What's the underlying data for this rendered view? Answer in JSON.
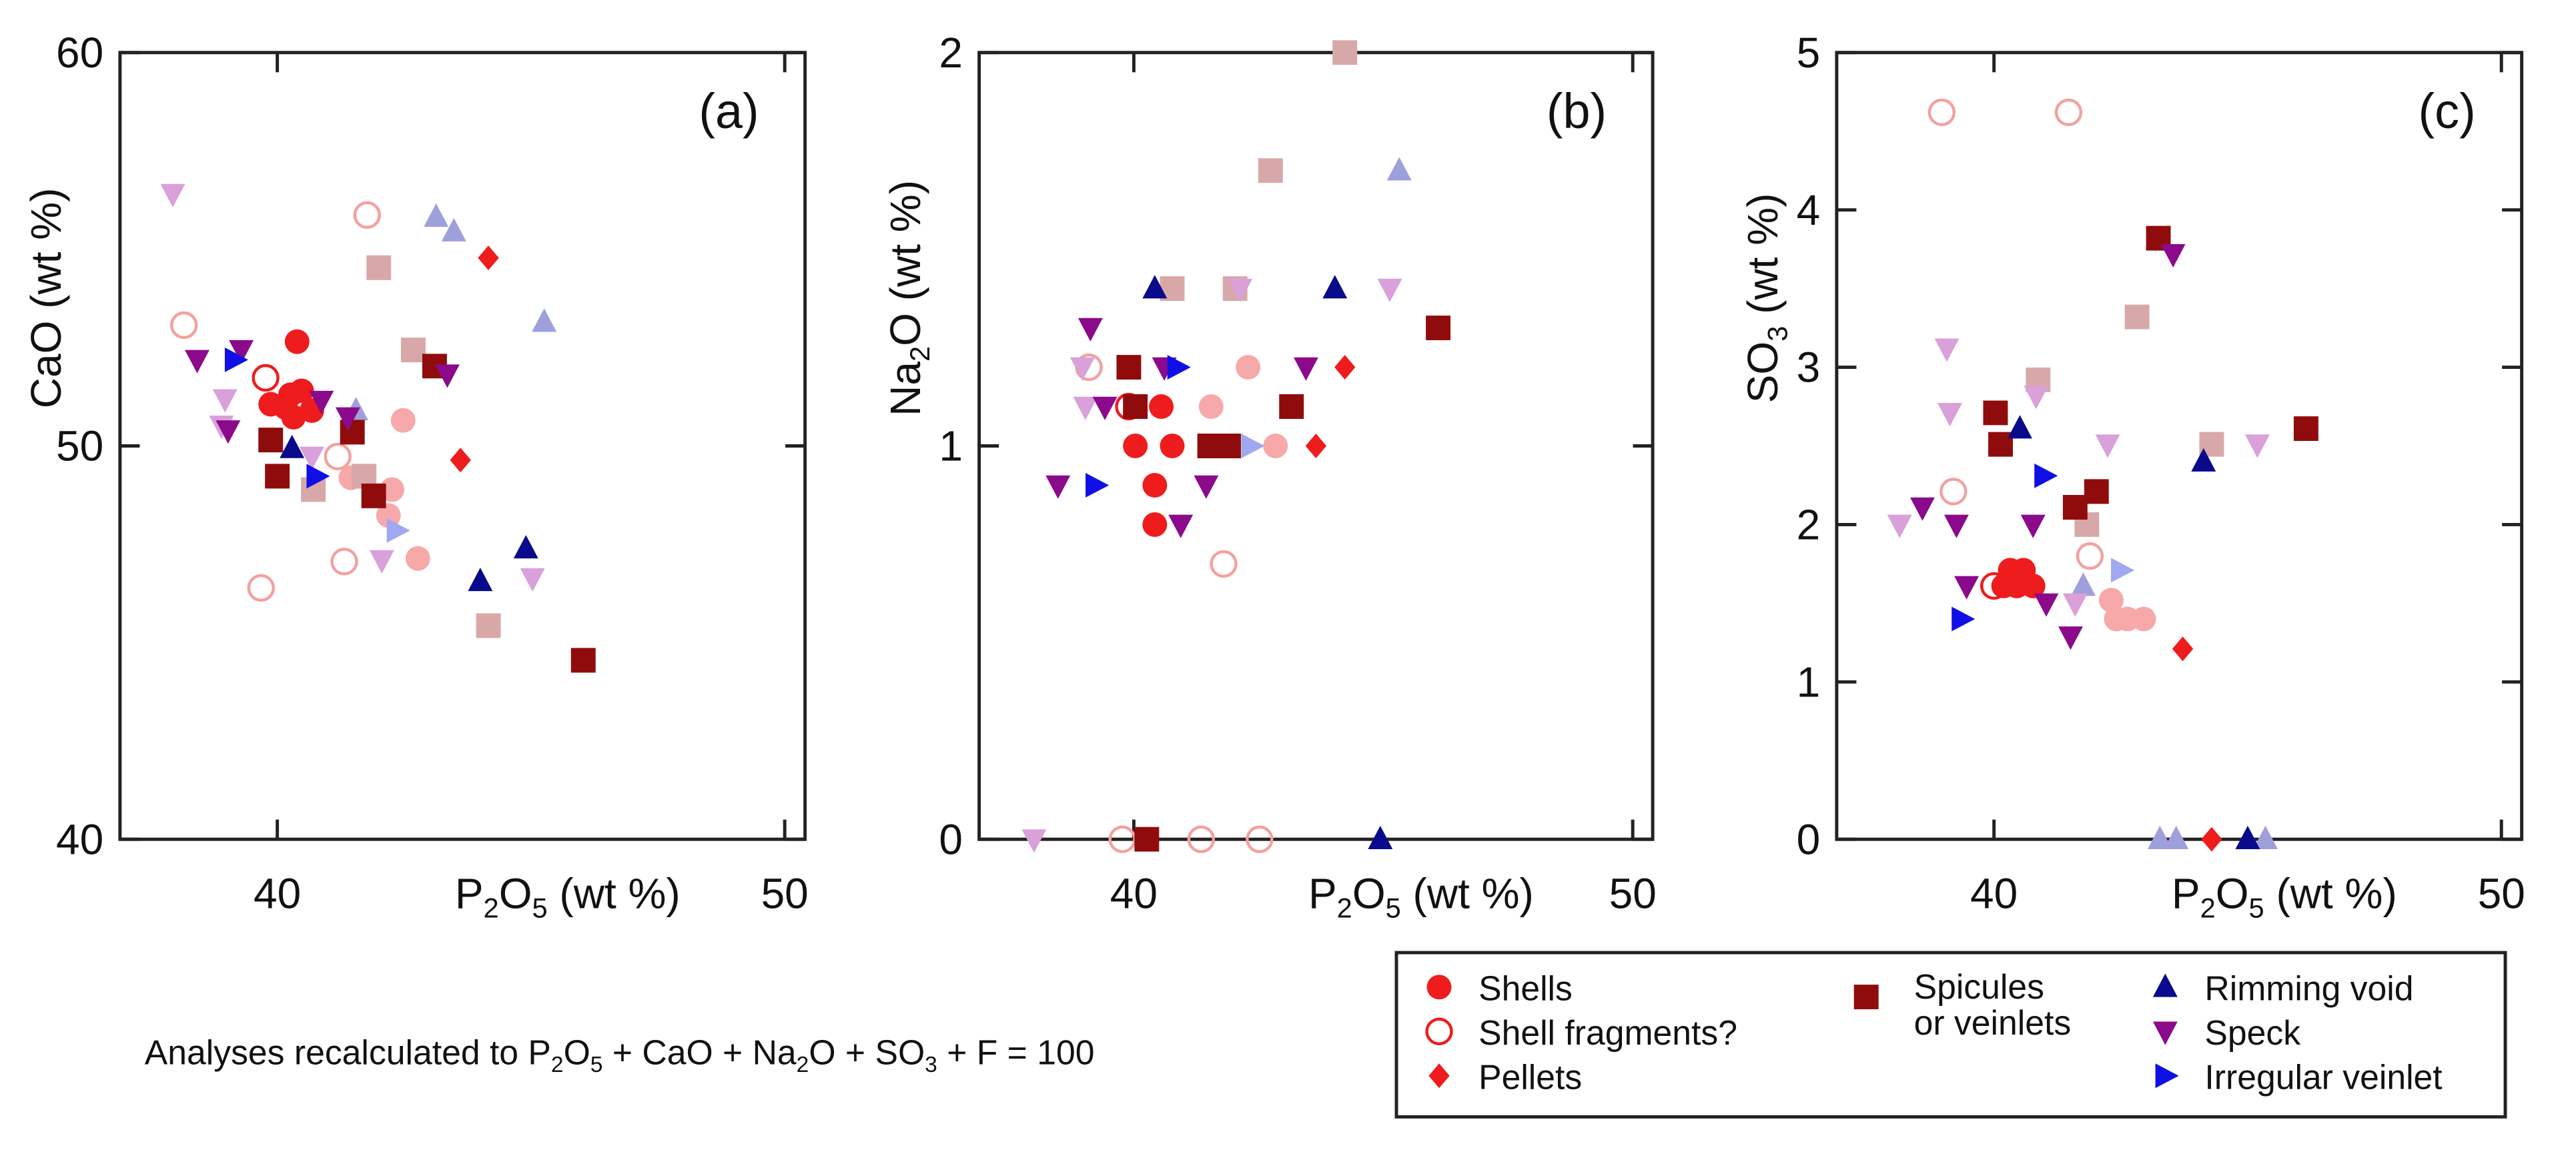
{
  "legend": [
    {
      "name": "Shells",
      "color": "#ee1c1c",
      "marker": "circle",
      "filled": true
    },
    {
      "name": "Shell fragments?",
      "color": "#ee1c1c",
      "marker": "circle",
      "filled": false
    },
    {
      "name": "Pellets",
      "color": "#ee1c1c",
      "marker": "diamond",
      "filled": true
    },
    {
      "name": [
        "Spicules",
        "or veinlets"
      ],
      "color": "#900c0c",
      "marker": "square",
      "filled": true
    },
    {
      "name": "Rimming void",
      "color": "#0a0a8c",
      "marker": "up",
      "filled": true
    },
    {
      "name": "Speck",
      "color": "#8b0a8b",
      "marker": "down",
      "filled": true
    },
    {
      "name": "Irregular veinlet",
      "color": "#1010e6",
      "marker": "right",
      "filled": true
    }
  ],
  "note": "Analyses recalculated to P2O5 + CaO + Na2O + SO3 + F = 100",
  "chart_data": [
    {
      "type": "scatter",
      "label": "(a)",
      "xlabel": "P2O5 (wt %)",
      "ylabel": "CaO (wt %)",
      "xlim": [
        36.9,
        50.4
      ],
      "xticks": [
        40,
        50
      ],
      "ylim": [
        40,
        60
      ],
      "yticks": [
        40,
        50,
        60
      ],
      "series": [
        {
          "color": "#f7a8a8",
          "marker": "circle",
          "filled": true,
          "x": [
            42.48,
            42.26,
            42.19,
            42.77,
            41.45
          ],
          "values": [
            50.65,
            48.89,
            48.23,
            47.14,
            49.19
          ]
        },
        {
          "color": "#f4a0a0",
          "marker": "circle",
          "filled": false,
          "x": [
            41.77,
            39.68,
            41.32,
            41.19,
            38.16
          ],
          "values": [
            55.87,
            46.39,
            47.06,
            49.73,
            53.07
          ]
        },
        {
          "color": "#d8a8a8",
          "marker": "square",
          "filled": true,
          "x": [
            42.0,
            42.68,
            40.71,
            41.71,
            44.16
          ],
          "values": [
            54.53,
            52.44,
            48.89,
            49.23,
            45.43
          ]
        },
        {
          "color": "#9ea0dc",
          "marker": "up",
          "filled": true,
          "x": [
            43.13,
            43.48,
            45.26,
            41.55
          ],
          "values": [
            55.82,
            55.45,
            53.15,
            50.9
          ]
        },
        {
          "color": "#d9a0d9",
          "marker": "down",
          "filled": true,
          "x": [
            37.94,
            38.97,
            38.9,
            42.06,
            45.03,
            40.68
          ],
          "values": [
            56.41,
            51.19,
            50.52,
            47.1,
            46.64,
            49.73
          ]
        },
        {
          "color": "#a0a8f0",
          "marker": "right",
          "filled": true,
          "x": [
            42.35
          ],
          "values": [
            47.85
          ]
        },
        {
          "color": "#ee1c1c",
          "marker": "circle",
          "filled": true,
          "x": [
            40.39,
            39.87,
            40.16,
            40.48,
            40.68,
            40.32,
            40.26
          ],
          "values": [
            52.65,
            51.06,
            50.98,
            51.4,
            50.9,
            50.73,
            51.3
          ]
        },
        {
          "color": "#ee1c1c",
          "marker": "circle",
          "filled": false,
          "x": [
            39.77
          ],
          "values": [
            51.73
          ]
        },
        {
          "color": "#ee1c1c",
          "marker": "diamond",
          "filled": true,
          "x": [
            44.16,
            43.61
          ],
          "values": [
            54.78,
            49.64
          ]
        },
        {
          "color": "#900c0c",
          "marker": "square",
          "filled": true,
          "x": [
            39.87,
            40.0,
            41.48,
            41.9,
            43.1,
            46.03
          ],
          "values": [
            50.15,
            49.23,
            50.35,
            48.73,
            52.03,
            44.55
          ]
        },
        {
          "color": "#0a0a8c",
          "marker": "up",
          "filled": true,
          "x": [
            40.29,
            44.9,
            44.0
          ],
          "values": [
            49.94,
            47.39,
            46.56
          ]
        },
        {
          "color": "#8b0a8b",
          "marker": "down",
          "filled": true,
          "x": [
            38.42,
            39.29,
            39.03,
            40.87,
            41.39,
            43.35
          ],
          "values": [
            52.19,
            52.44,
            50.4,
            51.15,
            50.73,
            51.82
          ]
        },
        {
          "color": "#1010e6",
          "marker": "right",
          "filled": true,
          "x": [
            39.16,
            40.77
          ],
          "values": [
            52.19,
            49.23
          ]
        }
      ]
    },
    {
      "type": "scatter",
      "label": "(b)",
      "xlabel": "P2O5 (wt %)",
      "ylabel": "Na2O (wt %)",
      "xlim": [
        36.9,
        50.4
      ],
      "xticks": [
        40,
        50
      ],
      "ylim": [
        0,
        2
      ],
      "yticks": [
        0,
        1,
        2
      ],
      "series": [
        {
          "color": "#f7a8a8",
          "marker": "circle",
          "filled": true,
          "x": [
            41.55,
            42.29,
            42.84
          ],
          "values": [
            1.1,
            1.2,
            1.0
          ]
        },
        {
          "color": "#f4a0a0",
          "marker": "circle",
          "filled": false,
          "x": [
            39.1,
            41.35,
            41.8,
            42.52,
            39.77
          ],
          "values": [
            1.2,
            0,
            0.7,
            0,
            0
          ]
        },
        {
          "color": "#d8a8a8",
          "marker": "square",
          "filled": true,
          "x": [
            40.77,
            42.03,
            42.74,
            44.23
          ],
          "values": [
            1.4,
            1.4,
            1.7,
            2.0
          ]
        },
        {
          "color": "#9ea0dc",
          "marker": "up",
          "filled": true,
          "x": [
            45.32
          ],
          "values": [
            1.7
          ]
        },
        {
          "color": "#d9a0d9",
          "marker": "down",
          "filled": true,
          "x": [
            38.0,
            38.97,
            39.03,
            42.13,
            45.13
          ],
          "values": [
            0,
            1.2,
            1.1,
            1.4,
            1.4
          ]
        },
        {
          "color": "#a0a8f0",
          "marker": "right",
          "filled": true,
          "x": [
            42.35
          ],
          "values": [
            1.0
          ]
        },
        {
          "color": "#ee1c1c",
          "marker": "circle",
          "filled": true,
          "x": [
            40.03,
            40.55,
            40.77,
            40.42,
            40.42
          ],
          "values": [
            1.0,
            1.1,
            1.0,
            0.9,
            0.8
          ]
        },
        {
          "color": "#ee1c1c",
          "marker": "circle",
          "filled": false,
          "x": [
            39.9
          ],
          "values": [
            1.1
          ]
        },
        {
          "color": "#ee1c1c",
          "marker": "diamond",
          "filled": true,
          "x": [
            43.65,
            44.23
          ],
          "values": [
            1.0,
            1.2
          ]
        },
        {
          "color": "#900c0c",
          "marker": "square",
          "filled": true,
          "x": [
            40.26,
            39.9,
            40.03,
            41.52,
            41.9,
            43.16,
            46.1
          ],
          "values": [
            0,
            1.2,
            1.1,
            1.0,
            1.0,
            1.1,
            1.3
          ]
        },
        {
          "color": "#0a0a8c",
          "marker": "up",
          "filled": true,
          "x": [
            40.42,
            44.03,
            44.94
          ],
          "values": [
            1.4,
            1.4,
            0
          ]
        },
        {
          "color": "#8b0a8b",
          "marker": "down",
          "filled": true,
          "x": [
            39.13,
            38.48,
            39.42,
            40.61,
            40.94,
            41.45,
            43.45
          ],
          "values": [
            1.3,
            0.9,
            1.1,
            1.2,
            0.8,
            0.9,
            1.2
          ]
        },
        {
          "color": "#1010e6",
          "marker": "right",
          "filled": true,
          "x": [
            39.23,
            40.87
          ],
          "values": [
            0.9,
            1.2
          ]
        }
      ]
    },
    {
      "type": "scatter",
      "label": "(c)",
      "xlabel": "P2O5 (wt %)",
      "ylabel": "SO3 (wt %)",
      "xlim": [
        36.9,
        50.4
      ],
      "xticks": [
        40,
        50
      ],
      "ylim": [
        0,
        5
      ],
      "yticks": [
        0,
        1,
        2,
        3,
        4,
        5
      ],
      "series": [
        {
          "color": "#f7a8a8",
          "marker": "circle",
          "filled": true,
          "x": [
            42.31,
            42.63,
            42.95,
            42.41
          ],
          "values": [
            1.52,
            1.4,
            1.4,
            1.4
          ]
        },
        {
          "color": "#f4a0a0",
          "marker": "circle",
          "filled": false,
          "x": [
            38.97,
            41.47,
            39.2,
            41.89
          ],
          "values": [
            4.62,
            4.62,
            2.21,
            1.8
          ]
        },
        {
          "color": "#d8a8a8",
          "marker": "square",
          "filled": true,
          "x": [
            40.87,
            41.83,
            42.82,
            44.29
          ],
          "values": [
            2.92,
            2.0,
            3.32,
            2.51
          ]
        },
        {
          "color": "#9ea0dc",
          "marker": "up",
          "filled": true,
          "x": [
            41.76,
            43.27,
            43.59,
            45.35
          ],
          "values": [
            1.61,
            0,
            0,
            0
          ]
        },
        {
          "color": "#d9a0d9",
          "marker": "down",
          "filled": true,
          "x": [
            38.14,
            39.07,
            39.13,
            40.83,
            42.24,
            45.19,
            41.6
          ],
          "values": [
            2.0,
            3.12,
            2.71,
            2.82,
            2.51,
            2.51,
            1.5
          ]
        },
        {
          "color": "#a0a8f0",
          "marker": "right",
          "filled": true,
          "x": [
            42.5
          ],
          "values": [
            1.71
          ]
        },
        {
          "color": "#ee1c1c",
          "marker": "circle",
          "filled": true,
          "x": [
            40.32,
            40.58,
            40.45,
            40.77,
            40.19
          ],
          "values": [
            1.71,
            1.71,
            1.61,
            1.61,
            1.61
          ]
        },
        {
          "color": "#ee1c1c",
          "marker": "circle",
          "filled": false,
          "x": [
            40.0
          ],
          "values": [
            1.61
          ]
        },
        {
          "color": "#ee1c1c",
          "marker": "diamond",
          "filled": true,
          "x": [
            43.72,
            44.29
          ],
          "values": [
            1.21,
            0
          ]
        },
        {
          "color": "#900c0c",
          "marker": "square",
          "filled": true,
          "x": [
            40.03,
            40.13,
            41.6,
            42.02,
            43.24,
            46.15
          ],
          "values": [
            2.71,
            2.51,
            2.11,
            2.21,
            3.82,
            2.61
          ]
        },
        {
          "color": "#0a0a8c",
          "marker": "up",
          "filled": true,
          "x": [
            40.51,
            44.13,
            45.0
          ],
          "values": [
            2.61,
            2.4,
            0
          ]
        },
        {
          "color": "#8b0a8b",
          "marker": "down",
          "filled": true,
          "x": [
            38.59,
            39.26,
            39.46,
            40.77,
            41.03,
            41.51,
            43.53
          ],
          "values": [
            2.11,
            2.0,
            1.61,
            2.0,
            1.5,
            1.29,
            3.72
          ]
        },
        {
          "color": "#1010e6",
          "marker": "right",
          "filled": true,
          "x": [
            39.36,
            40.99
          ],
          "values": [
            1.4,
            2.31
          ]
        }
      ]
    }
  ]
}
